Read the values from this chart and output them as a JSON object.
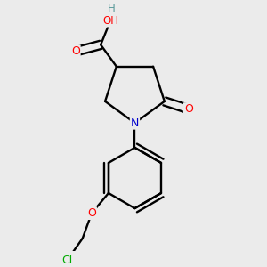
{
  "background_color": "#ebebeb",
  "bond_color": "#000000",
  "atom_colors": {
    "O": "#ff0000",
    "N": "#0000cc",
    "Cl": "#00aa00",
    "C": "#000000",
    "H": "#5a9a9a"
  },
  "figsize": [
    3.0,
    3.0
  ],
  "dpi": 100
}
